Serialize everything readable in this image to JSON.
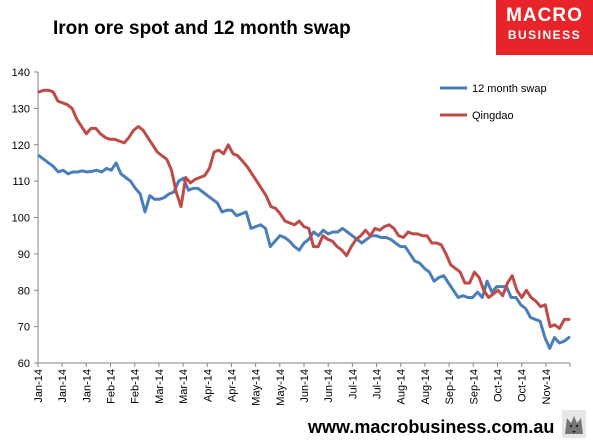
{
  "header": {
    "title": "Iron ore spot and 12 month swap"
  },
  "logo": {
    "line1": "MACRO",
    "line2": "BUSINESS"
  },
  "footer": {
    "url": "www.macrobusiness.com.au"
  },
  "colors": {
    "swap": "#4a7ebb",
    "qingdao": "#be4b48",
    "brand": "#e8242b"
  },
  "chart_data": {
    "type": "line",
    "title": "Iron ore spot and 12 month swap",
    "xlabel": "",
    "ylabel": "",
    "ylim": [
      60,
      140
    ],
    "yticks": [
      60,
      70,
      80,
      90,
      100,
      110,
      120,
      130,
      140
    ],
    "grid": false,
    "legend": "top-right",
    "x_tick_labels": [
      "Jan-14",
      "Jan-14",
      "Jan-14",
      "Feb-14",
      "Feb-14",
      "Mar-14",
      "Mar-14",
      "Apr-14",
      "Apr-14",
      "May-14",
      "May-14",
      "Jun-14",
      "Jun-14",
      "Jul-14",
      "Jul-14",
      "Aug-14",
      "Aug-14",
      "Sep-14",
      "Sep-14",
      "Oct-14",
      "Oct-14",
      "Nov-14"
    ],
    "series": [
      {
        "name": "12 month swap",
        "color": "#4a7ebb",
        "values": [
          117,
          116,
          115,
          114,
          112.5,
          113,
          112,
          112.5,
          112.5,
          112.8,
          112.5,
          112.7,
          113,
          112.5,
          113.5,
          113,
          115,
          112,
          111,
          110,
          108,
          106.5,
          101.5,
          106,
          105,
          105,
          105.5,
          106.5,
          107,
          110,
          110.8,
          107.5,
          108,
          108,
          107,
          106,
          105,
          104,
          101.5,
          102,
          102,
          100.5,
          101,
          101.5,
          97,
          97.5,
          98,
          97,
          92,
          93.5,
          95,
          94.5,
          93.5,
          92,
          91,
          93,
          94,
          96,
          95,
          96.5,
          95.5,
          96,
          96,
          97,
          96,
          95,
          94,
          93,
          94,
          95,
          95,
          94.5,
          94.5,
          94,
          93,
          92,
          92,
          90,
          88,
          87.5,
          86,
          85,
          82.5,
          83.5,
          84,
          82,
          80,
          78,
          78.5,
          78,
          78,
          79.5,
          78,
          82.5,
          79.5,
          81,
          81,
          81,
          78,
          78,
          76,
          75,
          72.5,
          72,
          71.5,
          67,
          64,
          67,
          65.5,
          66,
          67
        ]
      },
      {
        "name": "Qingdao",
        "color": "#be4b48",
        "values": [
          134.5,
          135,
          135,
          134.5,
          132,
          131.5,
          131,
          130,
          127,
          125,
          123,
          124.5,
          124.5,
          123,
          122,
          121.5,
          121.5,
          121,
          120.5,
          122,
          124,
          125,
          124,
          122,
          120,
          118,
          117,
          116,
          113,
          107,
          103,
          111,
          109.5,
          110.5,
          111,
          111.5,
          113.5,
          118,
          118.5,
          117.5,
          120,
          117.5,
          117,
          115.5,
          114,
          112,
          110,
          108,
          106,
          103,
          102.5,
          101,
          99,
          98.5,
          98,
          99,
          97.5,
          97,
          92,
          92,
          95,
          94,
          93.5,
          92,
          91,
          89.5,
          92,
          94,
          95,
          96.5,
          95,
          97,
          96.5,
          97.5,
          98,
          97,
          95,
          94.5,
          96,
          95.5,
          95.5,
          95,
          95,
          93,
          93,
          92.5,
          90,
          87,
          86,
          85,
          82,
          82,
          85,
          83.5,
          80,
          78,
          79,
          80,
          78.5,
          82,
          84,
          80,
          78,
          80,
          78,
          77,
          75.5,
          76,
          70,
          70.5,
          69.5,
          72,
          72
        ]
      }
    ]
  }
}
